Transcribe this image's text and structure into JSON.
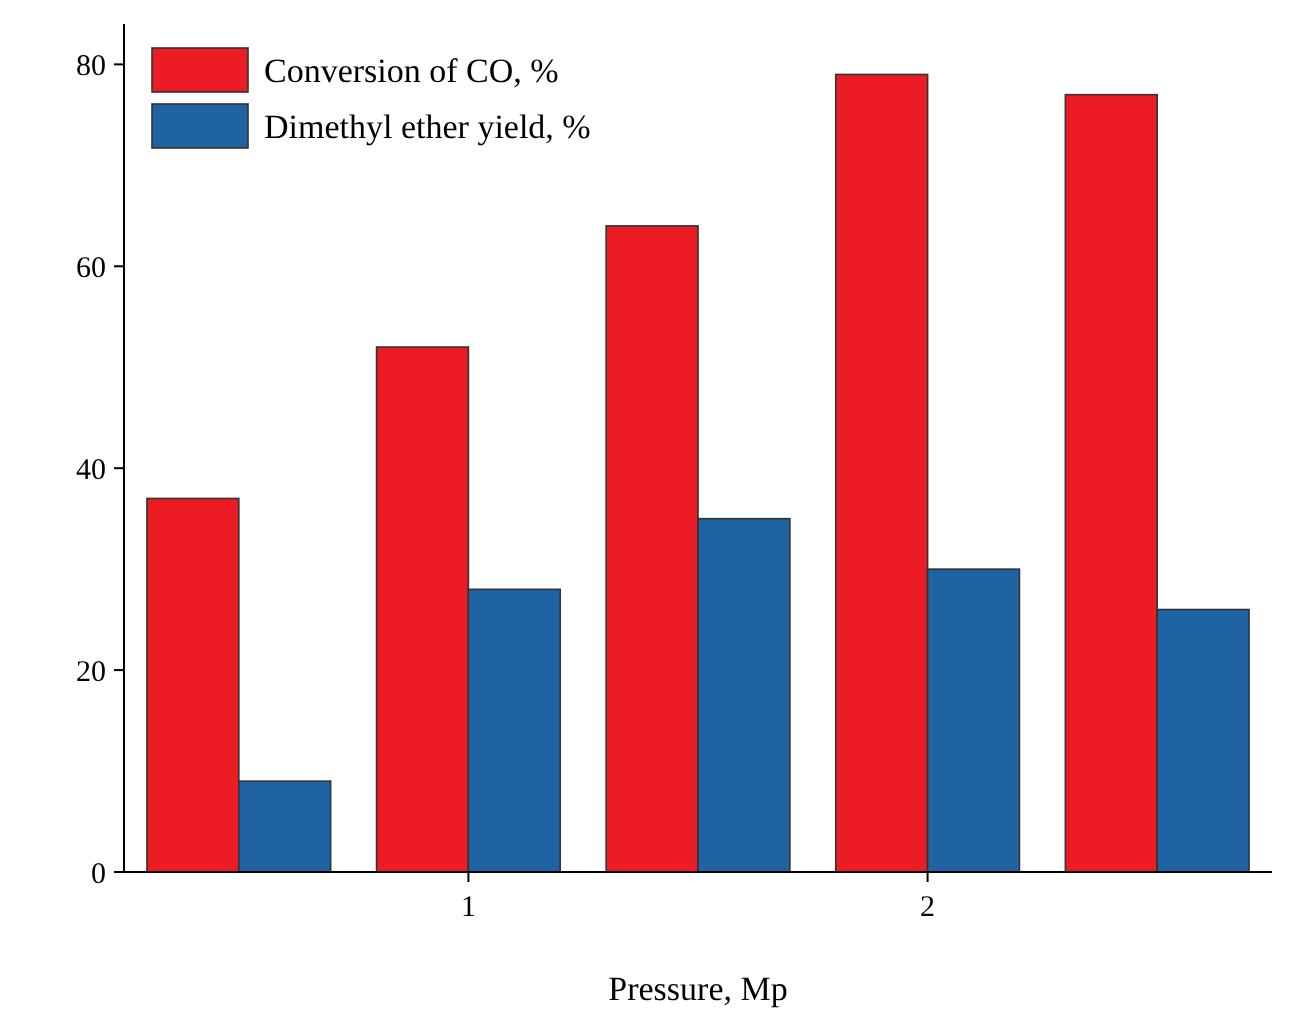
{
  "chart_data": {
    "type": "bar",
    "xlabel": "Pressure, Mp",
    "categories": [
      null,
      "1",
      null,
      "2",
      null
    ],
    "series": [
      {
        "name": "Conversion of CO, %",
        "color": "#ec1c24",
        "values": [
          37,
          52,
          64,
          79,
          77
        ]
      },
      {
        "name": "Dimethyl ether yield, %",
        "color": "#1f63a3",
        "values": [
          9,
          28,
          35,
          30,
          26
        ]
      }
    ],
    "ylim": [
      0,
      84
    ],
    "yticks": [
      0,
      20,
      40,
      60,
      80
    ],
    "grid": false,
    "legend": "top left"
  }
}
